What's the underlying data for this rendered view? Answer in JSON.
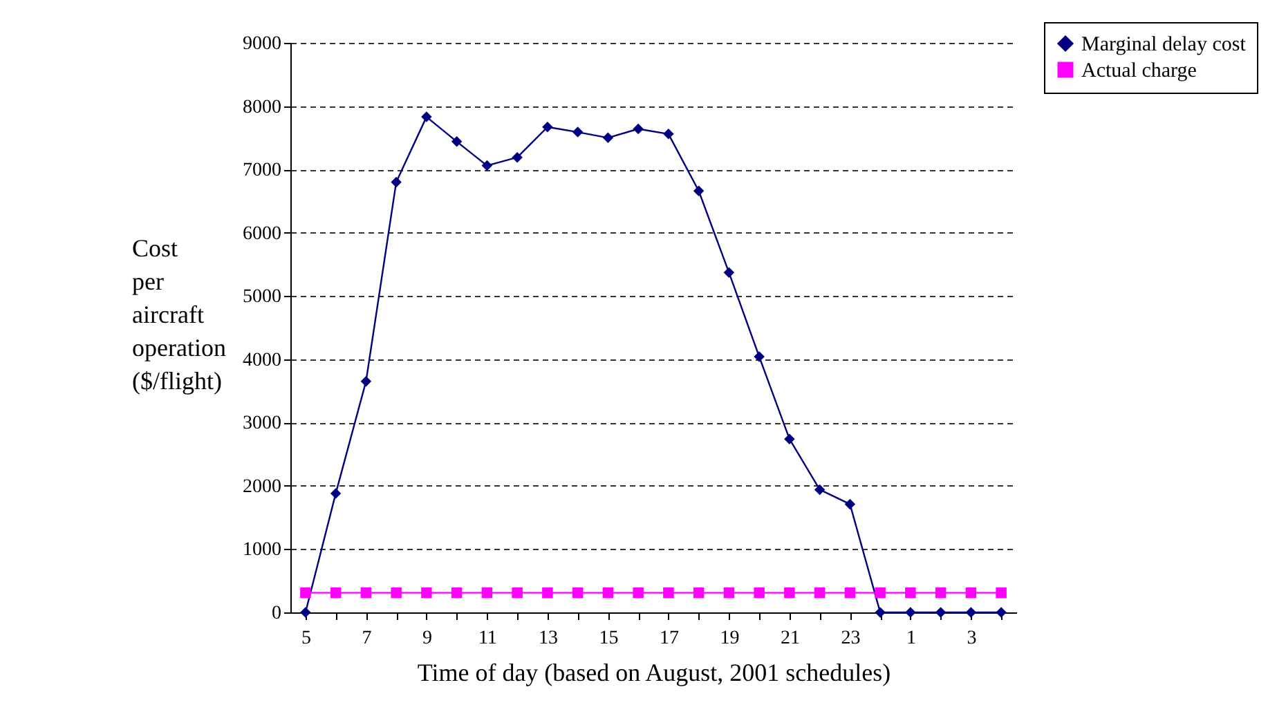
{
  "chart_data": {
    "type": "line",
    "xlabel": "Time of day (based on August, 2001 schedules)",
    "ylabel": "Cost per aircraft operation ($/flight)",
    "categories": [
      "5",
      null,
      "7",
      null,
      "9",
      null,
      "11",
      null,
      "13",
      null,
      "15",
      null,
      "17",
      null,
      "19",
      null,
      "21",
      null,
      "23",
      null,
      "1",
      null,
      "3",
      null
    ],
    "series": [
      {
        "name": "Marginal delay cost",
        "color": "#000080",
        "marker": "diamond",
        "values": [
          0,
          1880,
          3650,
          6800,
          7830,
          7440,
          7060,
          7190,
          7670,
          7590,
          7500,
          7640,
          7560,
          6660,
          5370,
          4040,
          2740,
          1940,
          1710,
          0,
          0,
          0,
          0,
          0
        ]
      },
      {
        "name": "Actual charge",
        "color": "#ff00ff",
        "marker": "square",
        "values": [
          310,
          310,
          310,
          310,
          310,
          310,
          310,
          310,
          310,
          310,
          310,
          310,
          310,
          310,
          310,
          310,
          310,
          310,
          310,
          310,
          310,
          310,
          310,
          310
        ]
      }
    ],
    "ylim": [
      0,
      9000
    ],
    "yticks": [
      0,
      1000,
      2000,
      3000,
      4000,
      5000,
      6000,
      7000,
      8000,
      9000
    ],
    "grid": "y",
    "legend": "top right"
  }
}
